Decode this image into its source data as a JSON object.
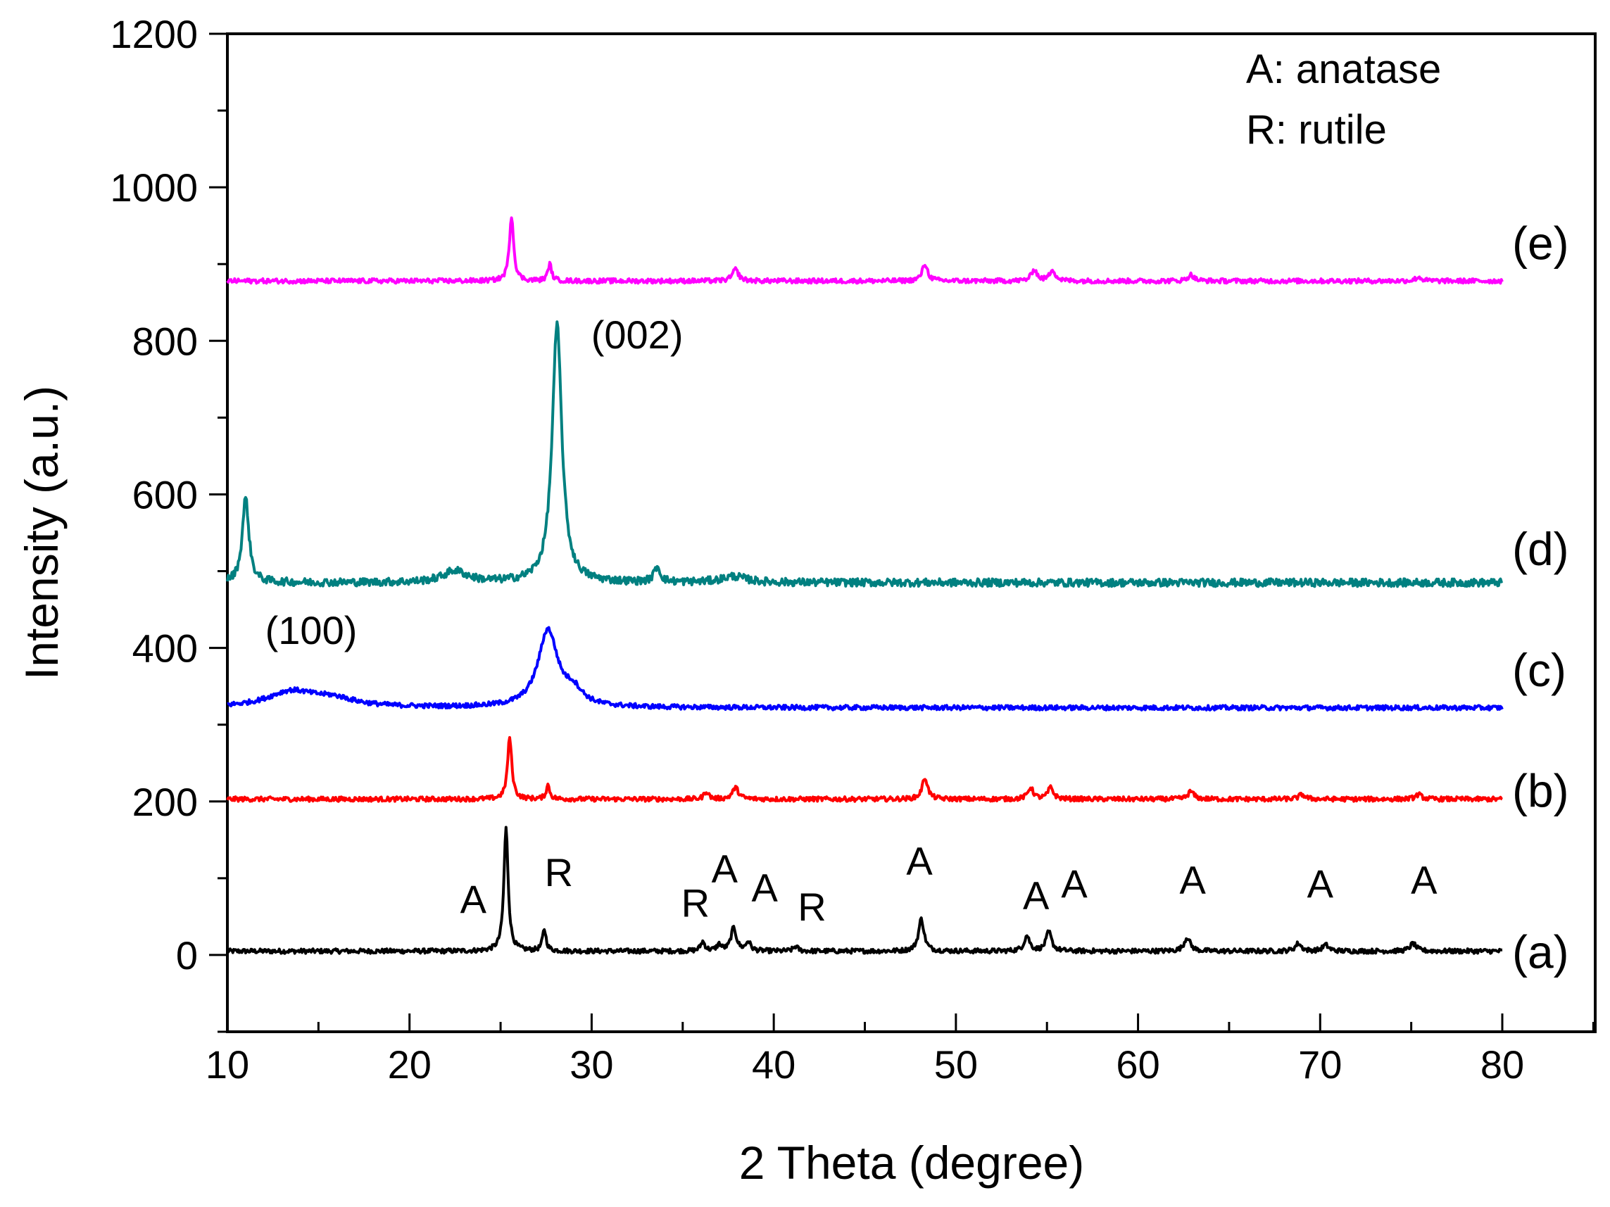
{
  "chart_data": {
    "type": "line",
    "xlabel": "2 Theta (degree)",
    "ylabel": "Intensity (a.u.)",
    "xlim": [
      10,
      85
    ],
    "ylim": [
      -100,
      1200
    ],
    "xticks": [
      10,
      20,
      30,
      40,
      50,
      60,
      70,
      80
    ],
    "yticks": [
      0,
      200,
      400,
      600,
      800,
      1000,
      1200
    ],
    "legend_text": [
      "A: anatase",
      "R: rutile"
    ],
    "series": [
      {
        "name": "(a)",
        "color": "#000000",
        "baseline": 5,
        "label_y": 5,
        "peaks": [
          [
            25.3,
            160,
            0.14
          ],
          [
            27.4,
            28,
            0.12
          ],
          [
            36.1,
            12,
            0.15
          ],
          [
            37.0,
            8,
            0.15
          ],
          [
            37.8,
            30,
            0.18
          ],
          [
            38.6,
            12,
            0.15
          ],
          [
            41.2,
            6,
            0.15
          ],
          [
            48.1,
            42,
            0.18
          ],
          [
            53.9,
            20,
            0.18
          ],
          [
            55.1,
            25,
            0.18
          ],
          [
            62.7,
            18,
            0.2
          ],
          [
            68.8,
            10,
            0.2
          ],
          [
            70.3,
            8,
            0.2
          ],
          [
            75.1,
            10,
            0.2
          ]
        ]
      },
      {
        "name": "(b)",
        "color": "#ff0000",
        "baseline": 203,
        "label_y": 215,
        "peaks": [
          [
            25.5,
            80,
            0.14
          ],
          [
            27.6,
            18,
            0.12
          ],
          [
            36.3,
            10,
            0.15
          ],
          [
            37.9,
            15,
            0.2
          ],
          [
            48.3,
            28,
            0.18
          ],
          [
            54.1,
            15,
            0.18
          ],
          [
            55.2,
            15,
            0.18
          ],
          [
            62.9,
            10,
            0.2
          ],
          [
            69.0,
            6,
            0.2
          ],
          [
            75.4,
            6,
            0.2
          ]
        ]
      },
      {
        "name": "(c)",
        "color": "#0000ff",
        "baseline": 322,
        "label_y": 372,
        "peaks": [
          [
            13.5,
            20,
            1.6
          ],
          [
            15.8,
            10,
            1.5
          ],
          [
            27.6,
            100,
            0.65
          ],
          [
            29.0,
            18,
            0.6
          ]
        ]
      },
      {
        "name": "(d)",
        "color": "#008080",
        "baseline": 485,
        "label_y": 530,
        "peaks": [
          [
            11.0,
            110,
            0.22
          ],
          [
            22.5,
            15,
            0.8
          ],
          [
            28.1,
            335,
            0.32
          ],
          [
            33.6,
            20,
            0.2
          ],
          [
            37.8,
            8,
            0.8
          ]
        ]
      },
      {
        "name": "(e)",
        "color": "#ff00ff",
        "baseline": 878,
        "label_y": 928,
        "peaks": [
          [
            25.6,
            85,
            0.14
          ],
          [
            27.7,
            22,
            0.12
          ],
          [
            37.9,
            15,
            0.2
          ],
          [
            48.3,
            22,
            0.18
          ],
          [
            54.3,
            15,
            0.18
          ],
          [
            55.3,
            15,
            0.18
          ],
          [
            62.9,
            8,
            0.2
          ],
          [
            75.4,
            5,
            0.2
          ]
        ]
      }
    ],
    "peak_annotations": [
      {
        "text": "A",
        "x": 23.5,
        "y": 55
      },
      {
        "text": "R",
        "x": 28.2,
        "y": 90
      },
      {
        "text": "R",
        "x": 35.7,
        "y": 50
      },
      {
        "text": "A",
        "x": 37.3,
        "y": 95
      },
      {
        "text": "A",
        "x": 39.5,
        "y": 70
      },
      {
        "text": "R",
        "x": 42.1,
        "y": 45
      },
      {
        "text": "A",
        "x": 48.0,
        "y": 105
      },
      {
        "text": "A",
        "x": 54.4,
        "y": 60
      },
      {
        "text": "A",
        "x": 56.5,
        "y": 75
      },
      {
        "text": "A",
        "x": 63.0,
        "y": 80
      },
      {
        "text": "A",
        "x": 70.0,
        "y": 75
      },
      {
        "text": "A",
        "x": 75.7,
        "y": 80
      },
      {
        "text": "(100)",
        "x": 14.6,
        "y": 405
      },
      {
        "text": "(002)",
        "x": 32.5,
        "y": 790
      }
    ]
  }
}
